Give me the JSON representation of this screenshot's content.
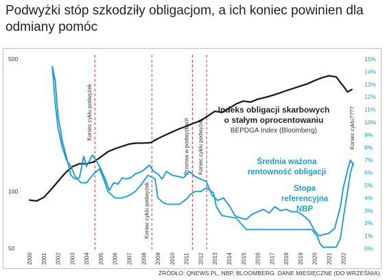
{
  "headline": "Podwyżki stóp szkodziły obligacjom, a ich koniec powinien dla odmiany pomóc",
  "source": "ŹRÓDŁO: QNEWS.PL, NBP, BLOOMBERG. DANE MIESIĘCZNE (DO WRZEŚNIA).",
  "colors": {
    "index": "#1a1a1a",
    "yield": "#1a9ad6",
    "ref_rate": "#1aa0d0",
    "marker": "#e03030"
  },
  "chart_data": {
    "type": "line",
    "x_ticks": [
      "2000",
      "2001",
      "2002",
      "2003",
      "2004",
      "2005",
      "2006",
      "2007",
      "2008",
      "2009",
      "2010",
      "2011",
      "2012",
      "2013",
      "2014",
      "2015",
      "2016",
      "2017",
      "2018",
      "2019",
      "2020",
      "2021",
      "2022"
    ],
    "left_axis": {
      "scale": "log",
      "ticks": [
        "500",
        "100",
        "50"
      ],
      "ylim": [
        50,
        500
      ]
    },
    "right_axis": {
      "ticks": [
        "15%",
        "14%",
        "13%",
        "12%",
        "11%",
        "10%",
        "9%",
        "8%",
        "7%",
        "6%",
        "5%",
        "4%",
        "3%",
        "2%",
        "1%",
        "0%"
      ],
      "ylim": [
        0,
        15
      ]
    },
    "annotations": {
      "index_title_1": "Indeks obligacji skarbowych",
      "index_title_2": "o stałym oprocentowaniu",
      "index_sub": "BEPDGA Index (Bloomberg)",
      "yield_1": "Średnia ważona",
      "yield_2": "rentowność obligacji",
      "ref_1": "Stopa",
      "ref_2": "referencyjna",
      "ref_3": "NBP",
      "cycle_end_2022": "Koniec cyklu????"
    },
    "cycle_markers": [
      {
        "x": 2004.58,
        "label": "Koniec cyklu podwyżek"
      },
      {
        "x": 2008.58,
        "label": "Koniec cyklu podwyżek"
      },
      {
        "x": 2011.42,
        "label": "Przerwa w podwyżkach"
      },
      {
        "x": 2012.42,
        "label": "Koniec cyklu podwyżek"
      }
    ],
    "series": [
      {
        "axis": "left",
        "values": [
          [
            2000,
            90
          ],
          [
            2000.5,
            89
          ],
          [
            2001,
            93
          ],
          [
            2001.5,
            102
          ],
          [
            2002,
            113
          ],
          [
            2002.5,
            125
          ],
          [
            2003,
            135
          ],
          [
            2003.5,
            140
          ],
          [
            2004,
            140
          ],
          [
            2004.5,
            143
          ],
          [
            2005,
            152
          ],
          [
            2005.5,
            162
          ],
          [
            2006,
            168
          ],
          [
            2006.5,
            173
          ],
          [
            2007,
            178
          ],
          [
            2007.5,
            180
          ],
          [
            2008,
            180
          ],
          [
            2008.5,
            181
          ],
          [
            2009,
            190
          ],
          [
            2009.5,
            198
          ],
          [
            2010,
            206
          ],
          [
            2010.5,
            214
          ],
          [
            2011,
            221
          ],
          [
            2011.5,
            229
          ],
          [
            2012,
            236
          ],
          [
            2012.5,
            250
          ],
          [
            2013,
            265
          ],
          [
            2013.5,
            261
          ],
          [
            2014,
            275
          ],
          [
            2014.5,
            290
          ],
          [
            2015,
            300
          ],
          [
            2015.5,
            296
          ],
          [
            2016,
            307
          ],
          [
            2016.5,
            313
          ],
          [
            2017,
            321
          ],
          [
            2017.5,
            330
          ],
          [
            2018,
            340
          ],
          [
            2018.5,
            350
          ],
          [
            2019,
            360
          ],
          [
            2019.5,
            370
          ],
          [
            2020,
            385
          ],
          [
            2020.5,
            398
          ],
          [
            2021,
            408
          ],
          [
            2021.5,
            402
          ],
          [
            2022,
            360
          ],
          [
            2022.3,
            335
          ],
          [
            2022.6,
            345
          ]
        ]
      },
      {
        "axis": "right",
        "values": [
          [
            2001.6,
            14.4
          ],
          [
            2001.8,
            13.3
          ],
          [
            2002,
            10.5
          ],
          [
            2002.3,
            8.5
          ],
          [
            2002.6,
            7.2
          ],
          [
            2002.9,
            5.8
          ],
          [
            2003.2,
            5.5
          ],
          [
            2003.5,
            5.6
          ],
          [
            2003.8,
            7.3
          ],
          [
            2004,
            6.5
          ],
          [
            2004.4,
            7.4
          ],
          [
            2004.7,
            6.9
          ],
          [
            2005,
            6.3
          ],
          [
            2005.3,
            5.5
          ],
          [
            2005.6,
            4.6
          ],
          [
            2005.9,
            5.2
          ],
          [
            2006.2,
            5.1
          ],
          [
            2006.5,
            5.6
          ],
          [
            2006.8,
            5.5
          ],
          [
            2007.1,
            5.6
          ],
          [
            2007.4,
            5.9
          ],
          [
            2007.7,
            6.0
          ],
          [
            2008,
            6.2
          ],
          [
            2008.4,
            6.6
          ],
          [
            2008.7,
            6.1
          ],
          [
            2009,
            5.9
          ],
          [
            2009.3,
            5.5
          ],
          [
            2009.6,
            6.1
          ],
          [
            2010,
            5.8
          ],
          [
            2010.4,
            5.7
          ],
          [
            2010.8,
            5.6
          ],
          [
            2011.2,
            6.1
          ],
          [
            2011.6,
            5.7
          ],
          [
            2012,
            5.5
          ],
          [
            2012.4,
            5.3
          ],
          [
            2012.8,
            4.2
          ],
          [
            2013.2,
            3.8
          ],
          [
            2013.6,
            4.0
          ],
          [
            2014,
            3.4
          ],
          [
            2014.4,
            2.6
          ],
          [
            2014.8,
            2.4
          ],
          [
            2015.2,
            2.3
          ],
          [
            2015.6,
            2.7
          ],
          [
            2016,
            2.9
          ],
          [
            2016.4,
            3.1
          ],
          [
            2016.8,
            2.8
          ],
          [
            2017.2,
            3.3
          ],
          [
            2017.6,
            3.0
          ],
          [
            2018,
            3.1
          ],
          [
            2018.4,
            2.9
          ],
          [
            2018.8,
            2.9
          ],
          [
            2019.2,
            2.6
          ],
          [
            2019.6,
            2.2
          ],
          [
            2020,
            1.4
          ],
          [
            2020.3,
            1.0
          ],
          [
            2020.6,
            1.1
          ],
          [
            2021,
            1.2
          ],
          [
            2021.4,
            1.6
          ],
          [
            2021.8,
            3.3
          ],
          [
            2022,
            4.8
          ],
          [
            2022.3,
            6.2
          ],
          [
            2022.5,
            7.0
          ],
          [
            2022.7,
            6.6
          ]
        ]
      },
      {
        "axis": "right",
        "values": [
          [
            2001.6,
            14.4
          ],
          [
            2001.8,
            11.5
          ],
          [
            2002,
            9.5
          ],
          [
            2002.3,
            8.0
          ],
          [
            2002.6,
            7.0
          ],
          [
            2002.9,
            6.5
          ],
          [
            2003.2,
            5.7
          ],
          [
            2003.6,
            5.2
          ],
          [
            2004,
            5.2
          ],
          [
            2004.5,
            5.9
          ],
          [
            2004.9,
            6.3
          ],
          [
            2005.2,
            5.5
          ],
          [
            2005.5,
            4.5
          ],
          [
            2006,
            4.0
          ],
          [
            2006.5,
            4.0
          ],
          [
            2007,
            4.2
          ],
          [
            2007.4,
            4.5
          ],
          [
            2007.8,
            5.0
          ],
          [
            2008.3,
            5.8
          ],
          [
            2008.8,
            5.5
          ],
          [
            2009,
            4.0
          ],
          [
            2009.4,
            3.6
          ],
          [
            2009.7,
            3.5
          ],
          [
            2010,
            3.5
          ],
          [
            2010.5,
            3.5
          ],
          [
            2011,
            3.9
          ],
          [
            2011.3,
            4.3
          ],
          [
            2011.6,
            4.5
          ],
          [
            2012,
            4.5
          ],
          [
            2012.4,
            4.8
          ],
          [
            2012.9,
            4.4
          ],
          [
            2013.1,
            3.3
          ],
          [
            2013.5,
            2.6
          ],
          [
            2014,
            2.5
          ],
          [
            2014.5,
            2.4
          ],
          [
            2014.8,
            2.0
          ],
          [
            2015.2,
            1.5
          ],
          [
            2016,
            1.5
          ],
          [
            2017,
            1.5
          ],
          [
            2018,
            1.5
          ],
          [
            2019,
            1.5
          ],
          [
            2019.8,
            1.5
          ],
          [
            2020.2,
            0.9
          ],
          [
            2020.4,
            0.3
          ],
          [
            2020.6,
            0.1
          ],
          [
            2021,
            0.1
          ],
          [
            2021.5,
            0.1
          ],
          [
            2021.8,
            0.8
          ],
          [
            2022,
            2.4
          ],
          [
            2022.3,
            4.5
          ],
          [
            2022.5,
            6.0
          ],
          [
            2022.7,
            6.75
          ]
        ]
      }
    ]
  }
}
